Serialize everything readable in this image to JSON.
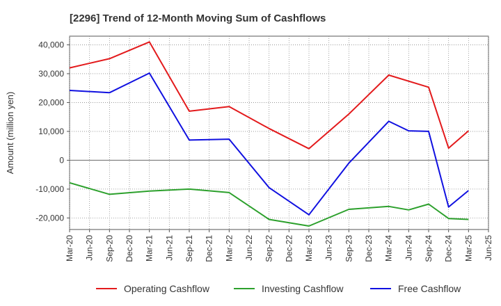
{
  "chart_data": {
    "type": "line",
    "title": "[2296]  Trend of 12-Month Moving Sum of Cashflows",
    "ylabel": "Amount (million yen)",
    "xlabel": "",
    "ylim": [
      -24000,
      43000
    ],
    "yticks": [
      -20000,
      -10000,
      0,
      10000,
      20000,
      30000,
      40000
    ],
    "ytick_labels": [
      "-20,000",
      "-10,000",
      "0",
      "10,000",
      "20,000",
      "30,000",
      "40,000"
    ],
    "x_tick_labels": [
      "Mar-20",
      "Jun-20",
      "Sep-20",
      "Dec-20",
      "Mar-21",
      "Jun-21",
      "Sep-21",
      "Dec-21",
      "Mar-22",
      "Jun-22",
      "Sep-22",
      "Dec-22",
      "Mar-23",
      "Jun-23",
      "Sep-23",
      "Dec-23",
      "Mar-24",
      "Jun-24",
      "Sep-24",
      "Dec-24",
      "Mar-25",
      "Jun-25"
    ],
    "grid": true,
    "legend_position": "bottom",
    "series": [
      {
        "name": "Operating Cashflow",
        "color": "#e31a1c",
        "x": [
          "Mar-20",
          "Sep-20",
          "Mar-21",
          "Sep-21",
          "Mar-22",
          "Sep-22",
          "Mar-23",
          "Sep-23",
          "Mar-24",
          "Sep-24",
          "Dec-24",
          "Mar-25"
        ],
        "values": [
          32000,
          35200,
          41000,
          17000,
          18600,
          11000,
          4000,
          16000,
          29500,
          25300,
          4200,
          10200
        ]
      },
      {
        "name": "Investing Cashflow",
        "color": "#2ca02c",
        "x": [
          "Mar-20",
          "Sep-20",
          "Mar-21",
          "Sep-21",
          "Mar-22",
          "Sep-22",
          "Mar-23",
          "Sep-23",
          "Mar-24",
          "Jun-24",
          "Sep-24",
          "Dec-24",
          "Mar-25"
        ],
        "values": [
          -7800,
          -11800,
          -10700,
          -10000,
          -11200,
          -20500,
          -22800,
          -17000,
          -16000,
          -17200,
          -15200,
          -20200,
          -20500
        ]
      },
      {
        "name": "Free Cashflow",
        "color": "#1010e0",
        "x": [
          "Mar-20",
          "Sep-20",
          "Mar-21",
          "Sep-21",
          "Mar-22",
          "Sep-22",
          "Mar-23",
          "Sep-23",
          "Mar-24",
          "Jun-24",
          "Sep-24",
          "Dec-24",
          "Mar-25"
        ],
        "values": [
          24200,
          23400,
          30200,
          7000,
          7300,
          -9500,
          -18900,
          -1000,
          13500,
          10200,
          10000,
          -16200,
          -10500
        ]
      }
    ]
  }
}
